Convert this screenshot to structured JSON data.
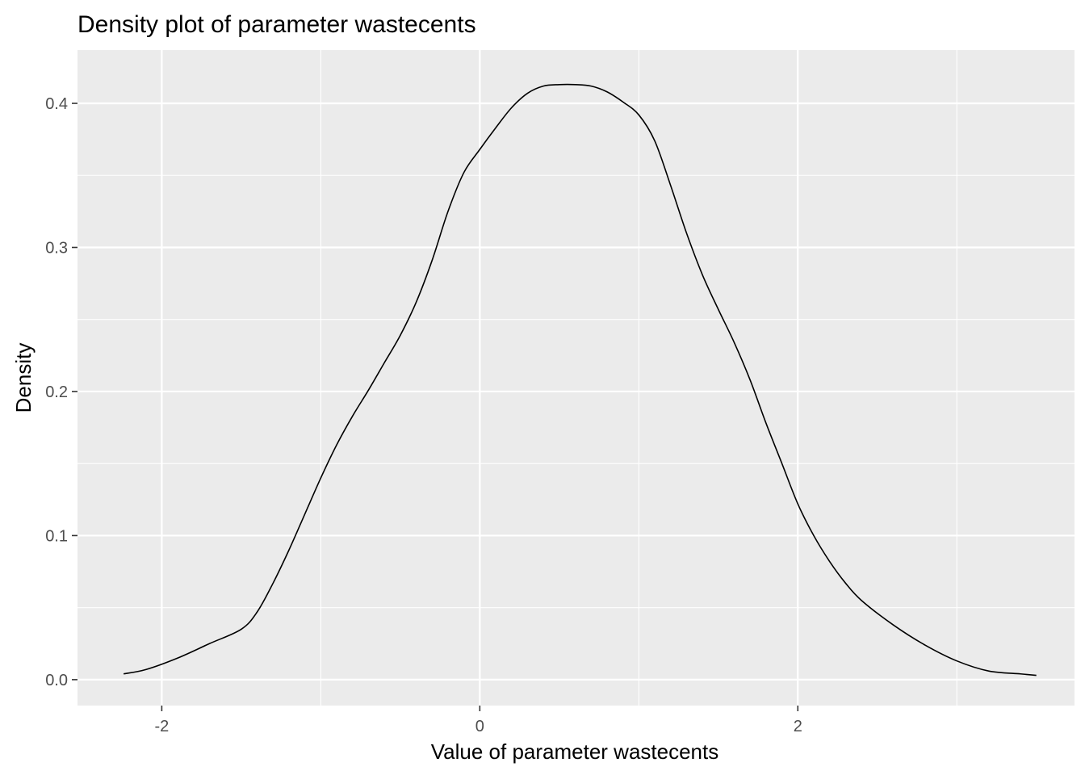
{
  "chart_data": {
    "type": "line",
    "title": "Density plot of parameter wastecents",
    "xlabel": "Value of parameter wastecents",
    "ylabel": "Density",
    "xlim": [
      -2.53,
      3.74
    ],
    "ylim": [
      -0.018,
      0.437
    ],
    "x_ticks": [
      -2,
      0,
      2
    ],
    "x_tick_labels": [
      "-2",
      "0",
      "2"
    ],
    "x_minor_ticks": [
      -1,
      1,
      3
    ],
    "y_ticks": [
      0.0,
      0.1,
      0.2,
      0.3,
      0.4
    ],
    "y_tick_labels": [
      "0.0",
      "0.1",
      "0.2",
      "0.3",
      "0.4"
    ],
    "y_minor_ticks": [
      0.05,
      0.15,
      0.25,
      0.35
    ],
    "grid": true,
    "legend": "none",
    "colors": {
      "panel_background": "#ebebeb",
      "grid_line": "#ffffff",
      "line": "#000000",
      "tick_label": "#4d4d4d"
    },
    "series": [
      {
        "x": [
          -2.24,
          -2.1,
          -1.9,
          -1.7,
          -1.5,
          -1.4,
          -1.3,
          -1.2,
          -1.1,
          -1.0,
          -0.9,
          -0.8,
          -0.7,
          -0.6,
          -0.5,
          -0.4,
          -0.3,
          -0.2,
          -0.1,
          0.0,
          0.1,
          0.2,
          0.3,
          0.4,
          0.5,
          0.6,
          0.7,
          0.8,
          0.9,
          1.0,
          1.1,
          1.2,
          1.3,
          1.4,
          1.5,
          1.6,
          1.7,
          1.8,
          1.9,
          2.0,
          2.1,
          2.2,
          2.3,
          2.4,
          2.6,
          2.8,
          3.0,
          3.2,
          3.4,
          3.5
        ],
        "y": [
          0.004,
          0.007,
          0.015,
          0.025,
          0.035,
          0.047,
          0.067,
          0.09,
          0.115,
          0.14,
          0.163,
          0.183,
          0.201,
          0.22,
          0.239,
          0.262,
          0.291,
          0.325,
          0.352,
          0.368,
          0.383,
          0.397,
          0.407,
          0.412,
          0.413,
          0.413,
          0.412,
          0.408,
          0.401,
          0.392,
          0.374,
          0.343,
          0.31,
          0.281,
          0.257,
          0.234,
          0.208,
          0.178,
          0.15,
          0.122,
          0.1,
          0.082,
          0.067,
          0.055,
          0.038,
          0.024,
          0.013,
          0.006,
          0.004,
          0.003
        ]
      }
    ]
  }
}
